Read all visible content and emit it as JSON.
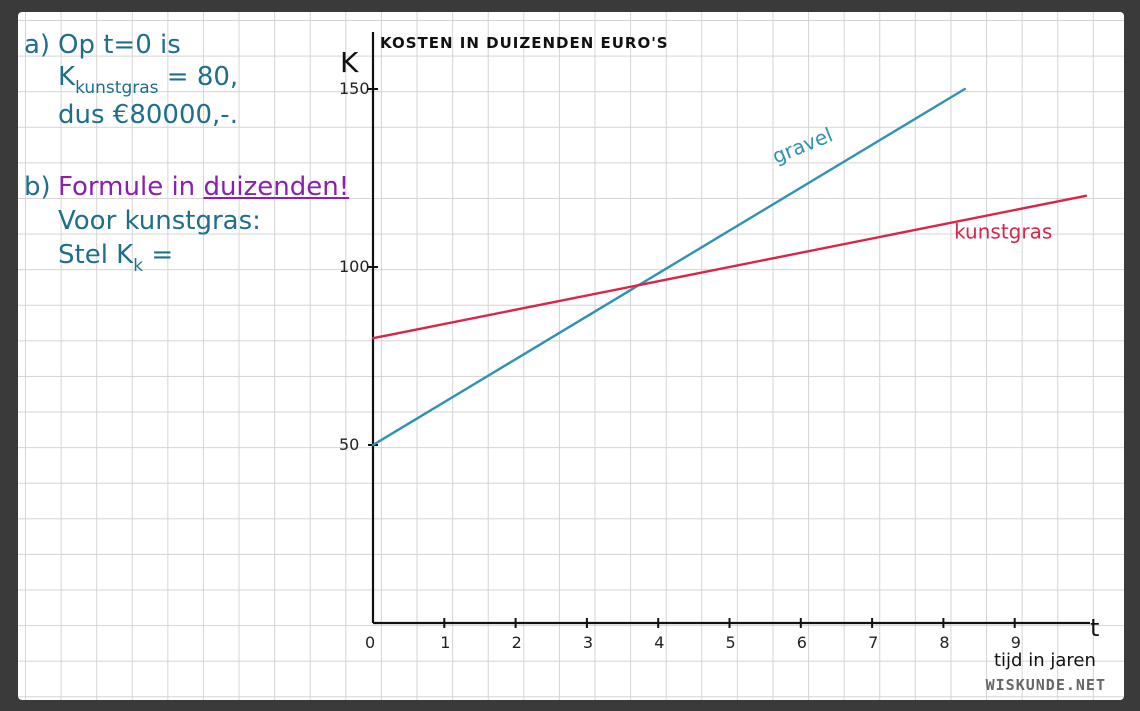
{
  "notes": {
    "a_label": "a)",
    "a_line1": "Op t=0 is",
    "a_line2_main": "K",
    "a_line2_sub": "kunstgras",
    "a_line2_rest": "= 80,",
    "a_line3": "dus €80000,-.",
    "b_label": "b)",
    "b_line1_start": "Formule in ",
    "b_line1_underlined": "duizenden!",
    "b_line2": "Voor kunstgras:",
    "b_line3_main": "Stel  K",
    "b_line3_sub": "k",
    "b_line3_rest": " ="
  },
  "watermark": "WISKUNDE.NET",
  "colors": {
    "teal_text": "#1f6f8b",
    "purple_text": "#8a1fb0",
    "gravel_line": "#2e93b0",
    "kunstgras_line": "#d8264a",
    "axis": "#111111"
  },
  "chart_data": {
    "type": "line",
    "title": "KOSTEN IN DUIZENDEN EURO'S",
    "ylabel": "K",
    "xlabel": "t",
    "xlabel_sub": "tijd in jaren",
    "xlim": [
      0,
      10
    ],
    "ylim": [
      0,
      150
    ],
    "x_ticks": [
      "0",
      "1",
      "2",
      "3",
      "4",
      "5",
      "6",
      "7",
      "8",
      "9"
    ],
    "y_ticks": [
      "50",
      "100",
      "150"
    ],
    "series": [
      {
        "name": "gravel",
        "x": [
          0,
          8.3
        ],
        "y": [
          50,
          150
        ],
        "color": "#2e93b0"
      },
      {
        "name": "kunstgras",
        "x": [
          0,
          10
        ],
        "y": [
          80,
          120
        ],
        "color": "#d8264a"
      }
    ]
  }
}
